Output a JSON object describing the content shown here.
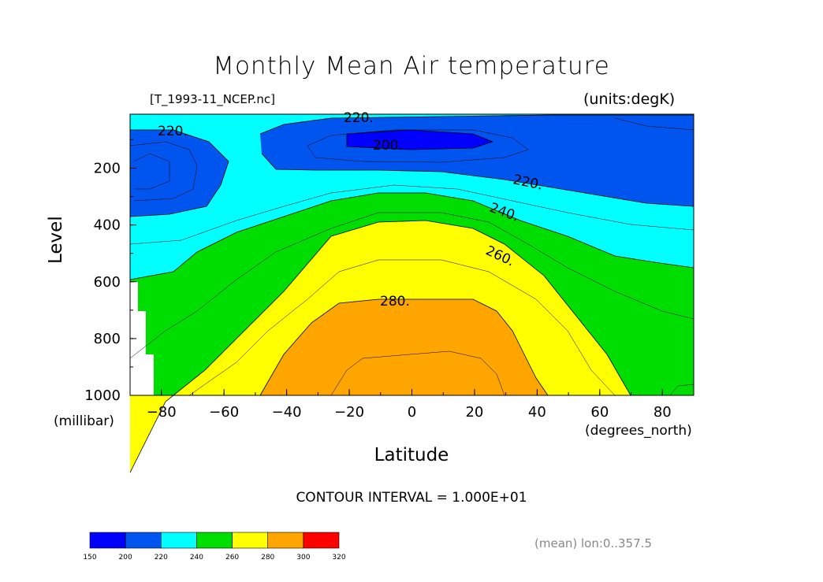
{
  "chart_data": {
    "type": "contour",
    "title": "Monthly Mean Air temperature",
    "source_label": "[T_1993-11_NCEP.nc]",
    "units_label": "(units:degK)",
    "xlabel": "Latitude",
    "xunit": "(degrees_north)",
    "ylabel": "Level",
    "yunit": "(millibar)",
    "xlim": [
      -90,
      90
    ],
    "ylim": [
      1000,
      10
    ],
    "x_ticks": [
      "-80",
      "-60",
      "-40",
      "-20",
      "0",
      "20",
      "40",
      "60",
      "80"
    ],
    "y_ticks": [
      "200",
      "400",
      "600",
      "800",
      "1000"
    ],
    "contour_interval": "CONTOUR INTERVAL = 1.000E+01",
    "contour_labels": [
      "220.",
      "220.",
      "200.",
      "220.",
      "240.",
      "260.",
      "280."
    ],
    "colorbar": {
      "ticks": [
        "150",
        "200",
        "220",
        "240",
        "260",
        "280",
        "300",
        "320"
      ],
      "colors": [
        "#0000ff",
        "#0055ee",
        "#00ffff",
        "#00dd00",
        "#ffff00",
        "#ffa500",
        "#ff0000"
      ]
    },
    "bands": [
      {
        "range": "<200",
        "color": "#0000ff"
      },
      {
        "range": "200-220",
        "color": "#0055ee"
      },
      {
        "range": "220-240",
        "color": "#00ffff"
      },
      {
        "range": "240-260",
        "color": "#00dd00"
      },
      {
        "range": "260-280",
        "color": "#ffff00"
      },
      {
        "range": "280-300",
        "color": "#ffa500"
      }
    ]
  },
  "footer_note": "(mean) lon:0..357.5"
}
